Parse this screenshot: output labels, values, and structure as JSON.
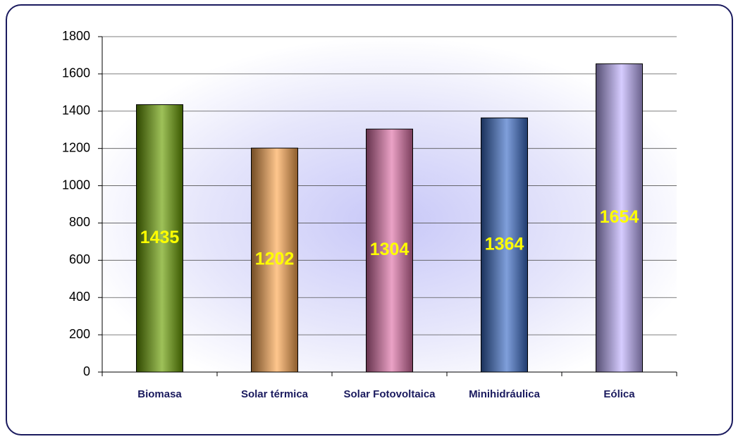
{
  "chart_data": {
    "type": "bar",
    "categories": [
      "Biomasa",
      "Solar térmica",
      "Solar Fotovoltaica",
      "Minihidráulica",
      "Eólica"
    ],
    "values": [
      1435,
      1202,
      1304,
      1364,
      1654
    ],
    "colors": [
      "#6aa000",
      "#ffa850",
      "#e070a8",
      "#3a6cc8",
      "#c0b0ff"
    ],
    "ylim": [
      0,
      1800
    ],
    "yticks": [
      0,
      200,
      400,
      600,
      800,
      1000,
      1200,
      1400,
      1600,
      1800
    ],
    "grid": true
  }
}
